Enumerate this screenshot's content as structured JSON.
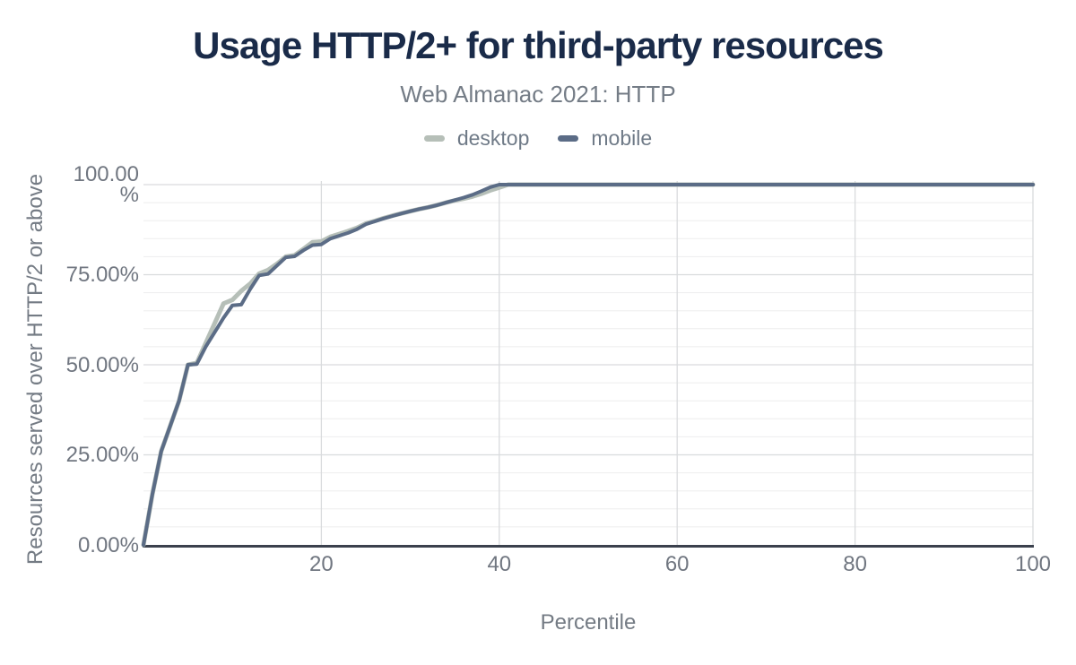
{
  "colors": {
    "title": "#1a2b49",
    "subtitle": "#747c86",
    "tick_text": "#707680",
    "axis_title_text": "#747b84",
    "legend_text": "#6f7a87",
    "axis_line": "#3b414d",
    "grid_minor": "#ededee",
    "grid_major": "#d9dbdd",
    "desktop": "#b6bfb8",
    "mobile": "#5b6c86",
    "background": "#ffffff"
  },
  "chart_data": {
    "type": "line",
    "title": "Usage HTTP/2+ for third-party resources",
    "subtitle": "Web Almanac 2021: HTTP",
    "xlabel": "Percentile",
    "ylabel": "Resources served over HTTP/2 or above",
    "xlim": [
      0,
      100
    ],
    "ylim": [
      0,
      100
    ],
    "legend_position": "top",
    "grid": {
      "y_minor_step": 5,
      "y_major_step": 25,
      "x_gridlines": [
        20,
        40,
        60,
        80,
        100
      ]
    },
    "x_ticks": [
      {
        "value": 20,
        "label": "20"
      },
      {
        "value": 40,
        "label": "40"
      },
      {
        "value": 60,
        "label": "60"
      },
      {
        "value": 80,
        "label": "80"
      },
      {
        "value": 100,
        "label": "100"
      }
    ],
    "y_ticks": [
      {
        "value": 0,
        "label": "0.00%"
      },
      {
        "value": 25,
        "label": "25.00%"
      },
      {
        "value": 50,
        "label": "50.00%"
      },
      {
        "value": 75,
        "label": "75.00%"
      },
      {
        "value": 100,
        "label": "100.00\n%"
      }
    ],
    "x": [
      0,
      1,
      2,
      3,
      4,
      5,
      6,
      7,
      8,
      9,
      10,
      11,
      12,
      13,
      14,
      15,
      16,
      17,
      18,
      19,
      20,
      21,
      22,
      23,
      24,
      25,
      26,
      27,
      28,
      29,
      30,
      31,
      32,
      33,
      34,
      35,
      36,
      37,
      38,
      39,
      40,
      41,
      42,
      43,
      44,
      45,
      46,
      47,
      48,
      49,
      50,
      51,
      52,
      53,
      54,
      55,
      56,
      57,
      58,
      59,
      60,
      61,
      62,
      63,
      64,
      65,
      66,
      67,
      68,
      69,
      70,
      71,
      72,
      73,
      74,
      75,
      76,
      77,
      78,
      79,
      80,
      81,
      82,
      83,
      84,
      85,
      86,
      87,
      88,
      89,
      90,
      91,
      92,
      93,
      94,
      95,
      96,
      97,
      98,
      99,
      100
    ],
    "series": [
      {
        "name": "desktop",
        "color": "#b6bfb8",
        "values": [
          0,
          14,
          26,
          33,
          40,
          50,
          50.5,
          56,
          61.5,
          67,
          68,
          70.5,
          72.5,
          75.3,
          76.3,
          78,
          80,
          80.4,
          82.2,
          84,
          84.2,
          85.5,
          86.3,
          87.1,
          88,
          89.2,
          89.9,
          90.7,
          91.4,
          92,
          92.6,
          93.2,
          93.7,
          94.3,
          95,
          95.6,
          96.1,
          96.7,
          97.5,
          98.4,
          99.2,
          100,
          100,
          100,
          100,
          100,
          100,
          100,
          100,
          100,
          100,
          100,
          100,
          100,
          100,
          100,
          100,
          100,
          100,
          100,
          100,
          100,
          100,
          100,
          100,
          100,
          100,
          100,
          100,
          100,
          100,
          100,
          100,
          100,
          100,
          100,
          100,
          100,
          100,
          100,
          100,
          100,
          100,
          100,
          100,
          100,
          100,
          100,
          100,
          100,
          100,
          100,
          100,
          100,
          100,
          100,
          100,
          100,
          100,
          100,
          100
        ]
      },
      {
        "name": "mobile",
        "color": "#5b6c86",
        "values": [
          0,
          14,
          26,
          33,
          40,
          50,
          50.2,
          55,
          59,
          63,
          66.5,
          66.7,
          71,
          74.8,
          75.2,
          77.5,
          79.8,
          80.1,
          81.8,
          83.2,
          83.4,
          85,
          85.8,
          86.6,
          87.6,
          89,
          89.8,
          90.6,
          91.3,
          92,
          92.6,
          93.2,
          93.7,
          94.3,
          95,
          95.7,
          96.4,
          97.2,
          98.2,
          99.3,
          100,
          100,
          100,
          100,
          100,
          100,
          100,
          100,
          100,
          100,
          100,
          100,
          100,
          100,
          100,
          100,
          100,
          100,
          100,
          100,
          100,
          100,
          100,
          100,
          100,
          100,
          100,
          100,
          100,
          100,
          100,
          100,
          100,
          100,
          100,
          100,
          100,
          100,
          100,
          100,
          100,
          100,
          100,
          100,
          100,
          100,
          100,
          100,
          100,
          100,
          100,
          100,
          100,
          100,
          100,
          100,
          100,
          100,
          100,
          100,
          100
        ]
      }
    ]
  }
}
